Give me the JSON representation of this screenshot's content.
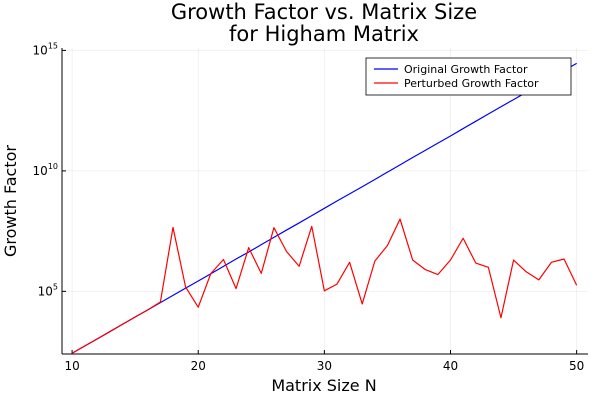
{
  "chart_data": {
    "type": "line",
    "title": [
      "Growth Factor vs. Matrix Size",
      "for Higham Matrix"
    ],
    "xlabel": "Matrix Size N",
    "ylabel": "Growth Factor",
    "xlim": [
      9.2,
      50.9
    ],
    "ylim_log10": [
      2.4,
      15.1
    ],
    "yscale": "log",
    "x_ticks": [
      10,
      20,
      30,
      40,
      50
    ],
    "y_ticks": [
      {
        "base": "10",
        "exp": "5"
      },
      {
        "base": "10",
        "exp": "10"
      },
      {
        "base": "10",
        "exp": "15"
      }
    ],
    "grid": true,
    "legend_position": "top-right",
    "series": [
      {
        "name": "Original Growth Factor",
        "color": "#0000ff",
        "x": [
          10,
          11,
          12,
          13,
          14,
          15,
          16,
          17,
          18,
          19,
          20,
          21,
          22,
          23,
          24,
          25,
          26,
          27,
          28,
          29,
          30,
          31,
          32,
          33,
          34,
          35,
          36,
          37,
          38,
          39,
          40,
          41,
          42,
          43,
          44,
          45,
          46,
          47,
          48,
          49,
          50
        ],
        "y": [
          270.0,
          540.0,
          1070.0,
          2140.0,
          4300.0,
          8600.0,
          17000.0,
          34000.0,
          68000.0,
          136000.0,
          270000.0,
          540000.0,
          1090000.0,
          2200000.0,
          4300000.0,
          8700000.0,
          17400000.0,
          35000000.0,
          69000000.0,
          139000000.0,
          280000000.0,
          560000000.0,
          1110000000.0,
          2200000000.0,
          4400000000.0,
          8900000000.0,
          17800000000.0,
          36000000000.0,
          71000000000.0,
          142000000000.0,
          280000000000.0,
          570000000000.0,
          1140000000000.0,
          2300000000000.0,
          4600000000000.0,
          9100000000000.0,
          18200000000000.0,
          36000000000000.0,
          73000000000000.0,
          146000000000000.0,
          290000000000000.0
        ]
      },
      {
        "name": "Perturbed Growth Factor",
        "color": "#ff0000",
        "x": [
          10,
          11,
          12,
          13,
          14,
          15,
          16,
          17,
          18,
          19,
          20,
          21,
          22,
          23,
          24,
          25,
          26,
          27,
          28,
          29,
          30,
          31,
          32,
          33,
          34,
          35,
          36,
          37,
          38,
          39,
          40,
          41,
          42,
          43,
          44,
          45,
          46,
          47,
          48,
          49,
          50
        ],
        "y": [
          270.0,
          540.0,
          1070.0,
          2140.0,
          4300.0,
          8600.0,
          17000.0,
          36000.0,
          45000000.0,
          150000.0,
          22000.0,
          550000.0,
          2100000.0,
          130000.0,
          6500000.0,
          560000.0,
          44000000.0,
          4500000.0,
          1100000.0,
          50000000.0,
          105000.0,
          200000.0,
          1600000.0,
          30000.0,
          1800000.0,
          8000000.0,
          100000000.0,
          2000000.0,
          800000.0,
          500000.0,
          2000000.0,
          16000000.0,
          1500000.0,
          1000000.0,
          8000.0,
          2000000.0,
          650000.0,
          300000.0,
          1600000.0,
          2200000.0,
          180000.0
        ]
      }
    ]
  }
}
